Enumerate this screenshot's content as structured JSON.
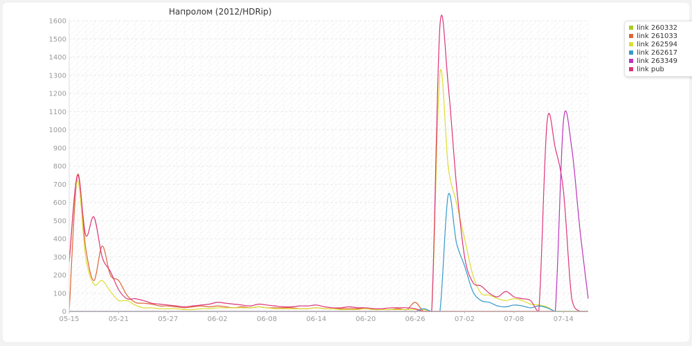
{
  "chart_data": {
    "type": "line",
    "title": "Напролом (2012/HDRip)",
    "xlabel": "",
    "ylabel": "",
    "ylim": [
      0,
      1600
    ],
    "y_ticks": [
      0,
      100,
      200,
      300,
      400,
      500,
      600,
      700,
      800,
      900,
      1000,
      1100,
      1200,
      1300,
      1400,
      1500,
      1600
    ],
    "x_ticks": [
      "05-15",
      "05-21",
      "05-27",
      "06-02",
      "06-08",
      "06-14",
      "06-20",
      "06-26",
      "07-02",
      "07-08",
      "07-14"
    ],
    "x_range": [
      "05-15",
      "07-17"
    ],
    "grid": true,
    "legend_position": "top-right",
    "x": [
      "05-15",
      "05-16",
      "05-17",
      "05-18",
      "05-19",
      "05-20",
      "05-21",
      "05-22",
      "05-23",
      "05-24",
      "05-25",
      "05-26",
      "05-27",
      "05-28",
      "05-29",
      "05-30",
      "05-31",
      "06-01",
      "06-02",
      "06-03",
      "06-04",
      "06-05",
      "06-06",
      "06-07",
      "06-08",
      "06-09",
      "06-10",
      "06-11",
      "06-12",
      "06-13",
      "06-14",
      "06-15",
      "06-16",
      "06-17",
      "06-18",
      "06-19",
      "06-20",
      "06-21",
      "06-22",
      "06-23",
      "06-24",
      "06-25",
      "06-26",
      "06-27",
      "06-28",
      "06-29",
      "06-30",
      "07-01",
      "07-02",
      "07-03",
      "07-04",
      "07-05",
      "07-06",
      "07-07",
      "07-08",
      "07-09",
      "07-10",
      "07-11",
      "07-12",
      "07-13",
      "07-14",
      "07-15",
      "07-16",
      "07-17"
    ],
    "series": [
      {
        "name": "link 260332",
        "color": "#aacc22",
        "values": [
          0,
          0,
          0,
          0,
          0,
          0,
          0,
          0,
          0,
          0,
          0,
          0,
          0,
          0,
          0,
          0,
          0,
          0,
          0,
          0,
          0,
          0,
          0,
          0,
          0,
          0,
          0,
          0,
          0,
          0,
          0,
          0,
          0,
          0,
          0,
          0,
          0,
          0,
          0,
          0,
          0,
          0,
          0,
          0,
          0,
          0,
          0,
          0,
          0,
          0,
          0,
          0,
          0,
          0,
          0,
          0,
          0,
          0,
          0,
          0,
          0,
          0,
          0,
          0
        ]
      },
      {
        "name": "link 261033",
        "color": "#dd6633",
        "values": [
          0,
          750,
          350,
          170,
          360,
          200,
          170,
          90,
          50,
          45,
          40,
          30,
          30,
          25,
          20,
          25,
          30,
          25,
          30,
          25,
          20,
          25,
          20,
          25,
          20,
          20,
          20,
          20,
          15,
          15,
          20,
          15,
          15,
          15,
          15,
          15,
          15,
          10,
          10,
          10,
          15,
          10,
          50,
          0,
          0,
          0,
          0,
          0,
          0,
          0,
          0,
          0,
          0,
          0,
          0,
          0,
          0,
          0,
          0,
          0,
          0,
          0,
          0,
          0
        ]
      },
      {
        "name": "link 262594",
        "color": "#dddd33",
        "values": [
          270,
          720,
          300,
          150,
          170,
          110,
          60,
          60,
          35,
          20,
          20,
          15,
          15,
          15,
          10,
          10,
          15,
          15,
          20,
          20,
          20,
          20,
          20,
          25,
          20,
          15,
          15,
          15,
          15,
          15,
          20,
          15,
          15,
          10,
          10,
          10,
          15,
          10,
          10,
          10,
          10,
          10,
          10,
          10,
          0,
          1310,
          800,
          600,
          400,
          200,
          100,
          90,
          70,
          60,
          70,
          60,
          40,
          35,
          25,
          0,
          0,
          0,
          0,
          0
        ]
      },
      {
        "name": "link 262617",
        "color": "#3399cc",
        "values": [
          0,
          0,
          0,
          0,
          0,
          0,
          0,
          0,
          0,
          0,
          0,
          0,
          0,
          0,
          0,
          0,
          0,
          0,
          0,
          0,
          0,
          0,
          0,
          0,
          0,
          0,
          0,
          0,
          0,
          0,
          0,
          0,
          0,
          0,
          0,
          0,
          0,
          0,
          0,
          0,
          0,
          0,
          0,
          15,
          0,
          0,
          640,
          380,
          250,
          110,
          60,
          50,
          30,
          25,
          35,
          30,
          20,
          30,
          20,
          0,
          0,
          0,
          0,
          0
        ]
      },
      {
        "name": "link 263349",
        "color": "#bb33bb",
        "values": [
          0,
          0,
          0,
          0,
          0,
          0,
          0,
          0,
          0,
          0,
          0,
          0,
          0,
          0,
          0,
          0,
          0,
          0,
          0,
          0,
          0,
          0,
          0,
          0,
          0,
          0,
          0,
          0,
          0,
          0,
          0,
          0,
          0,
          0,
          0,
          0,
          0,
          0,
          0,
          0,
          0,
          0,
          0,
          0,
          0,
          0,
          0,
          0,
          0,
          0,
          0,
          0,
          0,
          0,
          0,
          0,
          0,
          0,
          0,
          0,
          1050,
          900,
          450,
          70
        ]
      },
      {
        "name": "link pub",
        "color": "#dd3377",
        "values": [
          270,
          750,
          420,
          520,
          300,
          220,
          120,
          70,
          70,
          60,
          45,
          40,
          35,
          30,
          25,
          30,
          35,
          40,
          50,
          45,
          40,
          35,
          30,
          40,
          35,
          30,
          25,
          25,
          30,
          30,
          35,
          25,
          20,
          20,
          25,
          20,
          20,
          15,
          15,
          20,
          20,
          20,
          15,
          0,
          0,
          1570,
          1250,
          700,
          300,
          160,
          140,
          100,
          80,
          110,
          80,
          70,
          60,
          0,
          1040,
          900,
          660,
          70,
          0,
          0
        ]
      }
    ]
  }
}
